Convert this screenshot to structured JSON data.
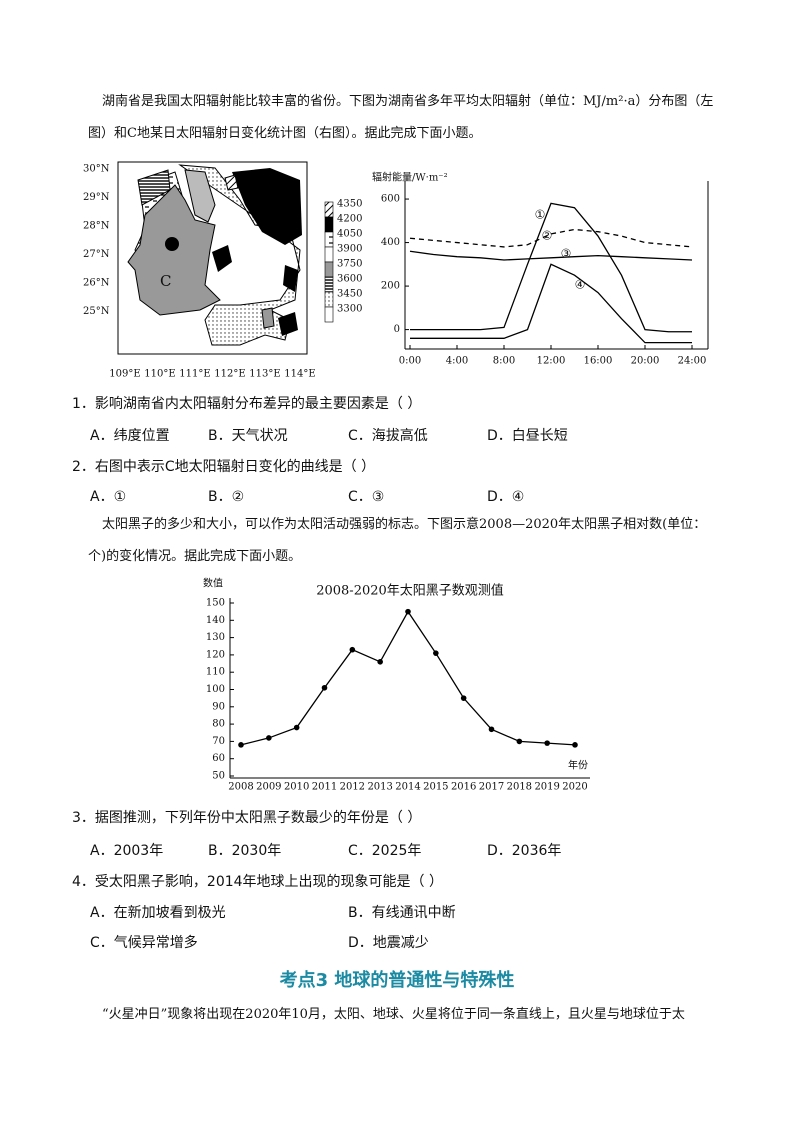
{
  "intro1": "湖南省是我国太阳辐射能比较丰富的省份。下图为湖南省多年平均太阳辐射（单位：MJ/m²·a）分布图（左图）和C地某日太阳辐射日变化统计图（右图）。据此完成下面小题。",
  "map": {
    "lat_labels": [
      "30°N",
      "29°N",
      "28°N",
      "27°N",
      "26°N",
      "25°N"
    ],
    "lon_labels": [
      "109°E",
      "110°E",
      "111°E",
      "112°E",
      "113°E",
      "114°E"
    ],
    "point_label": "C",
    "legend": [
      4350,
      4200,
      4050,
      3900,
      3750,
      3600,
      3450,
      3300
    ]
  },
  "questions": [
    {
      "stem": "1．影响湖南省内太阳辐射分布差异的最主要因素是（   ）",
      "options": [
        "A．纬度位置",
        "B．天气状况",
        "C．海拔高低",
        "D．白昼长短"
      ]
    },
    {
      "stem": "2．右图中表示C地太阳辐射日变化的曲线是（   ）",
      "options": [
        "A．①",
        "B．②",
        "C．③",
        "D．④"
      ]
    },
    {
      "stem": "3．据图推测，下列年份中太阳黑子数最少的年份是（   ）",
      "options": [
        "A．2003年",
        "B．2030年",
        "C．2025年",
        "D．2036年"
      ]
    },
    {
      "stem": "4．受太阳黑子影响，2014年地球上出现的现象可能是（   ）",
      "options": [
        "A．在新加坡看到极光",
        "B．有线通讯中断",
        "C．气候异常增多",
        "D．地震减少"
      ]
    }
  ],
  "intro2": "太阳黑子的多少和大小，可以作为太阳活动强弱的标志。下图示意2008—2020年太阳黑子相对数(单位：个)的变化情况。据此完成下面小题。",
  "heading": "考点3  地球的普通性与特殊性",
  "intro3": "“火星冲日”现象将出现在2020年10月，太阳、地球、火星将位于同一条直线上，且火星与地球位于太",
  "chart_data": [
    {
      "type": "line",
      "y_label": "辐射能量/W·m⁻²",
      "x": [
        0,
        2,
        4,
        6,
        8,
        10,
        12,
        14,
        16,
        18,
        20,
        22,
        24
      ],
      "xlim": [
        0,
        24
      ],
      "xticks": [
        {
          "value": 0,
          "label": "0:00"
        },
        {
          "value": 4,
          "label": "4:00"
        },
        {
          "value": 8,
          "label": "8:00"
        },
        {
          "value": 12,
          "label": "12:00"
        },
        {
          "value": 16,
          "label": "16:00"
        },
        {
          "value": 20,
          "label": "20:00"
        },
        {
          "value": 24,
          "label": "24:00"
        }
      ],
      "ylim": [
        -80,
        660
      ],
      "yticks": [
        0,
        200,
        400,
        600
      ],
      "series": [
        {
          "name": "①",
          "color": "#000",
          "dashed": false,
          "values": [
            0,
            0,
            0,
            0,
            10,
            300,
            580,
            560,
            430,
            250,
            0,
            -10,
            -10
          ]
        },
        {
          "name": "②",
          "color": "#000",
          "dashed": true,
          "values": [
            420,
            410,
            400,
            390,
            380,
            390,
            440,
            460,
            450,
            430,
            400,
            390,
            380
          ]
        },
        {
          "name": "③",
          "color": "#000",
          "dashed": false,
          "values": [
            360,
            345,
            335,
            330,
            320,
            325,
            330,
            335,
            340,
            335,
            330,
            325,
            320
          ]
        },
        {
          "name": "④",
          "color": "#000",
          "dashed": false,
          "values": [
            -40,
            -40,
            -40,
            -40,
            -40,
            0,
            300,
            250,
            170,
            50,
            -60,
            -60,
            -60
          ]
        }
      ]
    },
    {
      "type": "line",
      "title": "2008-2020年太阳黑子数观测值",
      "y_label": "数值",
      "x_label": "年份",
      "categories": [
        "2008",
        "2009",
        "2010",
        "2011",
        "2012",
        "2013",
        "2014",
        "2015",
        "2016",
        "2017",
        "2018",
        "2019",
        "2020"
      ],
      "values": [
        68,
        72,
        78,
        101,
        123,
        116,
        145,
        121,
        95,
        77,
        70,
        69,
        68
      ],
      "color": "#000",
      "ylim": [
        50,
        150
      ],
      "yticks": [
        50,
        60,
        70,
        80,
        90,
        100,
        110,
        120,
        130,
        140,
        150
      ]
    }
  ]
}
